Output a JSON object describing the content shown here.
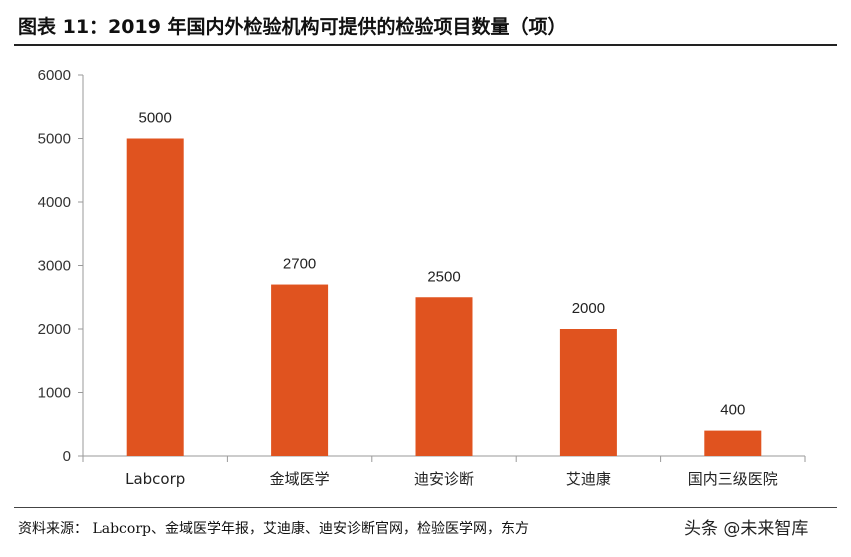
{
  "header": {
    "title": "图表 11：2019 年国内外检验机构可提供的检验项目数量（项）"
  },
  "footer": {
    "source": "资料来源： Labcorp、金域医学年报，艾迪康、迪安诊断官网，检验医学网，东方",
    "watermark": "头条 @未来智库"
  },
  "chart_data": {
    "type": "bar",
    "categories": [
      "Labcorp",
      "金域医学",
      "迪安诊断",
      "艾迪康",
      "国内三级医院"
    ],
    "values": [
      5000,
      2700,
      2500,
      2000,
      400
    ],
    "data_labels": [
      "5000",
      "2700",
      "2500",
      "2000",
      "400"
    ],
    "y_ticks": [
      0,
      1000,
      2000,
      3000,
      4000,
      5000,
      6000
    ],
    "ylim": [
      0,
      6000
    ],
    "bar_color": "#E0531F",
    "axis_color": "#9a9a9a",
    "grid": false,
    "legend": "none"
  }
}
